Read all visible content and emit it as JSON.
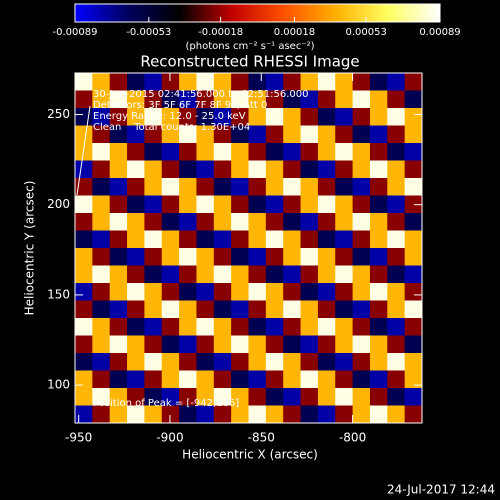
{
  "chart_data": {
    "type": "heatmap",
    "title": "Reconstructed RHESSI Image",
    "x_label": "Heliocentric X (arcsec)",
    "y_label": "Heliocentric Y (arcsec)",
    "xlim": [
      -952,
      -762
    ],
    "ylim": [
      79,
      273
    ],
    "xticks": [
      -950,
      -900,
      -850,
      -800
    ],
    "yticks": [
      100,
      150,
      200,
      250
    ],
    "colorbar": {
      "label": "(photons cm⁻² s⁻¹ asec⁻²)",
      "clim": [
        -0.00089,
        0.00089
      ],
      "ticks": [
        -0.00089,
        -0.00053,
        -0.00018,
        0.00018,
        0.00053,
        0.00089
      ],
      "colormap": [
        "#0000ff",
        "#000060",
        "#000000",
        "#c00000",
        "#ff5000",
        "#ffb000",
        "#ffff60",
        "#ffffff"
      ]
    },
    "annotations": [
      "30-Jun-2015 02:41:56.000 to 02:51:56.000",
      "Detectors: 3F 5F 6F 7F 8F 9F, Att 0",
      "Energy Range: 12.0 - 25.0 keV",
      "Clean    Total counts: 1.30E+04"
    ],
    "peak_label": "Position of Peak = [-942,186]",
    "footer": "24-Jul-2017 12:44",
    "z": [
      [
        0.00085,
        0.0004,
        -0.0002,
        -0.0006,
        -0.00075,
        -0.0002,
        0.0004,
        0.00085,
        0.0004,
        -0.0002,
        -0.0006,
        -0.00075,
        -0.0002,
        0.0004,
        0.00085,
        0.0004,
        -0.0002,
        -0.0006,
        -0.00075,
        -0.0002
      ],
      [
        -0.0002,
        0.0004,
        0.00085,
        0.0004,
        -0.0002,
        -0.0006,
        -0.00075,
        -0.0002,
        0.0004,
        0.00085,
        0.0004,
        -0.0002,
        -0.0006,
        -0.00075,
        -0.0002,
        0.0004,
        0.00085,
        0.0004,
        -0.0002,
        -0.0006
      ],
      [
        -0.0006,
        -0.00075,
        -0.0002,
        0.0004,
        0.00085,
        0.0004,
        -0.0002,
        -0.0006,
        -0.00075,
        -0.0002,
        0.0004,
        0.00085,
        0.0004,
        -0.0002,
        -0.0006,
        -0.00075,
        -0.0002,
        0.0004,
        0.00085,
        0.0004
      ],
      [
        0.0004,
        -0.0002,
        -0.0006,
        -0.00075,
        -0.0002,
        0.0004,
        0.00085,
        0.0004,
        -0.0002,
        -0.0006,
        -0.00075,
        -0.0002,
        0.0004,
        0.00085,
        0.0004,
        -0.0002,
        -0.0006,
        -0.00075,
        -0.0002,
        0.0004
      ],
      [
        0.0004,
        0.00085,
        0.0004,
        -0.0002,
        -0.0006,
        -0.00075,
        -0.0002,
        0.0004,
        0.00085,
        0.0004,
        -0.0002,
        -0.0006,
        -0.00075,
        -0.0002,
        0.0004,
        0.00085,
        0.0004,
        -0.0002,
        -0.0006,
        -0.00075
      ],
      [
        -0.00075,
        -0.0002,
        0.0004,
        0.00085,
        0.0004,
        -0.0002,
        -0.0006,
        -0.00075,
        -0.0002,
        0.0004,
        0.00085,
        0.0004,
        -0.0002,
        -0.0006,
        -0.00075,
        -0.0002,
        0.0004,
        0.00085,
        0.0004,
        -0.0002
      ],
      [
        -0.0002,
        -0.0006,
        -0.00075,
        -0.0002,
        0.0004,
        0.00085,
        0.0004,
        -0.0002,
        -0.0006,
        -0.00075,
        -0.0002,
        0.0004,
        0.00085,
        0.0004,
        -0.0002,
        -0.0006,
        -0.00075,
        -0.0002,
        0.0004,
        0.00085
      ],
      [
        0.00085,
        0.0004,
        -0.0002,
        -0.0006,
        -0.00075,
        -0.0002,
        0.0004,
        0.00085,
        0.0004,
        -0.0002,
        -0.0006,
        -0.00075,
        -0.0002,
        0.0004,
        0.00085,
        0.0004,
        -0.0002,
        -0.0006,
        -0.00075,
        -0.0002
      ],
      [
        -0.0002,
        0.0004,
        0.00085,
        0.0004,
        -0.0002,
        -0.0006,
        -0.00075,
        -0.0002,
        0.0004,
        0.00085,
        0.0004,
        -0.0002,
        -0.0006,
        -0.00075,
        -0.0002,
        0.0004,
        0.00085,
        0.0004,
        -0.0002,
        -0.0006
      ],
      [
        -0.0006,
        -0.00075,
        -0.0002,
        0.0004,
        0.00085,
        0.0004,
        -0.0002,
        -0.0006,
        -0.00075,
        -0.0002,
        0.0004,
        0.00085,
        0.0004,
        -0.0002,
        -0.0006,
        -0.00075,
        -0.0002,
        0.0004,
        0.00085,
        0.0004
      ],
      [
        0.0004,
        -0.0002,
        -0.0006,
        -0.00075,
        -0.0002,
        0.0004,
        0.00085,
        0.0004,
        -0.0002,
        -0.0006,
        -0.00075,
        -0.0002,
        0.0004,
        0.00085,
        0.0004,
        -0.0002,
        -0.0006,
        -0.00075,
        -0.0002,
        0.0004
      ],
      [
        0.0004,
        0.00085,
        0.0004,
        -0.0002,
        -0.0006,
        -0.00075,
        -0.0002,
        0.0004,
        0.00085,
        0.0004,
        -0.0002,
        -0.0006,
        -0.00075,
        -0.0002,
        0.0004,
        0.00085,
        0.0004,
        -0.0002,
        -0.0006,
        -0.00075
      ],
      [
        -0.00075,
        -0.0002,
        0.0004,
        0.00085,
        0.0004,
        -0.0002,
        -0.0006,
        -0.00075,
        -0.0002,
        0.0004,
        0.00085,
        0.0004,
        -0.0002,
        -0.0006,
        -0.00075,
        -0.0002,
        0.0004,
        0.00085,
        0.0004,
        -0.0002
      ],
      [
        -0.0002,
        -0.0006,
        -0.00075,
        -0.0002,
        0.0004,
        0.00085,
        0.0004,
        -0.0002,
        -0.0006,
        -0.00075,
        -0.0002,
        0.0004,
        0.00085,
        0.0004,
        -0.0002,
        -0.0006,
        -0.00075,
        -0.0002,
        0.0004,
        0.00085
      ],
      [
        0.00085,
        0.0004,
        -0.0002,
        -0.0006,
        -0.00075,
        -0.0002,
        0.0004,
        0.00085,
        0.0004,
        -0.0002,
        -0.0006,
        -0.00075,
        -0.0002,
        0.0004,
        0.00085,
        0.0004,
        -0.0002,
        -0.0006,
        -0.00075,
        -0.0002
      ],
      [
        -0.0002,
        0.0004,
        0.00085,
        0.0004,
        -0.0002,
        -0.0006,
        -0.00075,
        -0.0002,
        0.0004,
        0.00085,
        0.0004,
        -0.0002,
        -0.0006,
        -0.00075,
        -0.0002,
        0.0004,
        0.00085,
        0.0004,
        -0.0002,
        -0.0006
      ],
      [
        -0.0006,
        -0.00075,
        -0.0002,
        0.0004,
        0.00085,
        0.0004,
        -0.0002,
        -0.0006,
        -0.00075,
        -0.0002,
        0.0004,
        0.00085,
        0.0004,
        -0.0002,
        -0.0006,
        -0.00075,
        -0.0002,
        0.0004,
        0.00085,
        0.0004
      ],
      [
        0.0004,
        -0.0002,
        -0.0006,
        -0.00075,
        -0.0002,
        0.0004,
        0.00085,
        0.0004,
        -0.0002,
        -0.0006,
        -0.00075,
        -0.0002,
        0.0004,
        0.00085,
        0.0004,
        -0.0002,
        -0.0006,
        -0.00075,
        -0.0002,
        0.0004
      ],
      [
        0.0004,
        0.00085,
        0.0004,
        -0.0002,
        -0.0006,
        -0.00075,
        -0.0002,
        0.0004,
        0.00085,
        0.0004,
        -0.0002,
        -0.0006,
        -0.00075,
        -0.0002,
        0.0004,
        0.00085,
        0.0004,
        -0.0002,
        -0.0006,
        -0.00075
      ],
      [
        -0.00075,
        -0.0002,
        0.0004,
        0.00085,
        0.0004,
        -0.0002,
        -0.0006,
        -0.00075,
        -0.0002,
        0.0004,
        0.00085,
        0.0004,
        -0.0002,
        -0.0006,
        -0.00075,
        -0.0002,
        0.0004,
        0.00085,
        0.0004,
        -0.0002
      ]
    ]
  }
}
